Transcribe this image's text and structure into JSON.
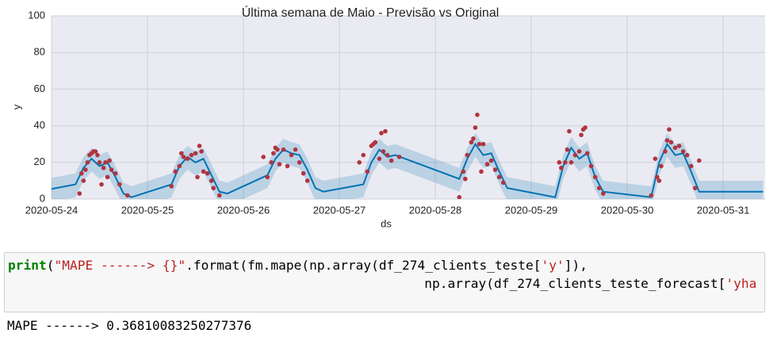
{
  "chart_data": {
    "type": "forecast",
    "title": "Última semana de Maio - Previsão vs Original",
    "xlabel": "ds",
    "ylabel": "y",
    "xlim": [
      "2020-05-24 00:00",
      "2020-05-31 10:30"
    ],
    "xticks": [
      "2020-05-24",
      "2020-05-25",
      "2020-05-26",
      "2020-05-27",
      "2020-05-28",
      "2020-05-29",
      "2020-05-30",
      "2020-05-31"
    ],
    "ylim": [
      0,
      100
    ],
    "yticks": [
      0,
      20,
      40,
      60,
      80,
      100
    ],
    "grid": true,
    "forecast": {
      "color": "#0072b2",
      "x": [
        "2020-05-24 00:00",
        "2020-05-24 06:00",
        "2020-05-24 08:00",
        "2020-05-24 10:00",
        "2020-05-24 12:00",
        "2020-05-24 14:00",
        "2020-05-24 16:00",
        "2020-05-24 18:00",
        "2020-05-24 20:00",
        "2020-05-25 06:00",
        "2020-05-25 08:00",
        "2020-05-25 10:00",
        "2020-05-25 12:00",
        "2020-05-25 14:00",
        "2020-05-25 16:00",
        "2020-05-25 18:00",
        "2020-05-25 20:00",
        "2020-05-26 06:00",
        "2020-05-26 08:00",
        "2020-05-26 10:00",
        "2020-05-26 12:00",
        "2020-05-26 14:00",
        "2020-05-26 16:00",
        "2020-05-26 18:00",
        "2020-05-26 20:00",
        "2020-05-27 06:00",
        "2020-05-27 08:00",
        "2020-05-27 10:00",
        "2020-05-27 12:00",
        "2020-05-27 14:00",
        "2020-05-28 06:00",
        "2020-05-28 08:00",
        "2020-05-28 10:00",
        "2020-05-28 12:00",
        "2020-05-28 14:00",
        "2020-05-28 16:00",
        "2020-05-28 18:00",
        "2020-05-29 06:00",
        "2020-05-29 08:00",
        "2020-05-29 10:00",
        "2020-05-29 12:00",
        "2020-05-29 14:00",
        "2020-05-29 16:00",
        "2020-05-29 18:00",
        "2020-05-30 06:00",
        "2020-05-30 08:00",
        "2020-05-30 10:00",
        "2020-05-30 12:00",
        "2020-05-30 14:00",
        "2020-05-30 16:00",
        "2020-05-30 18:00",
        "2020-05-31 00:00",
        "2020-05-31 10:00"
      ],
      "values": [
        5.5,
        8,
        17,
        22,
        18,
        20,
        12,
        3,
        1,
        8,
        18,
        23,
        20,
        22,
        13,
        4,
        3,
        13,
        22,
        27,
        25,
        24,
        16,
        6,
        4,
        8,
        20,
        27,
        23,
        24,
        11,
        22,
        30,
        24,
        25,
        15,
        6,
        1,
        18,
        28,
        22,
        25,
        12,
        4,
        1,
        20,
        30,
        24,
        25,
        15,
        4,
        4,
        4
      ],
      "lower": [
        -1.5,
        1,
        10,
        15,
        11,
        13,
        5,
        -4,
        -6,
        1,
        11,
        16,
        13,
        15,
        6,
        -3,
        -4,
        6,
        15,
        20,
        18,
        17,
        9,
        -1,
        -3,
        1,
        13,
        20,
        16,
        17,
        4,
        15,
        23,
        17,
        18,
        8,
        -1,
        -6,
        11,
        21,
        15,
        18,
        5,
        -3,
        -6,
        13,
        23,
        17,
        18,
        8,
        -3,
        -3,
        -3
      ],
      "upper": [
        11.5,
        14,
        23,
        28,
        24,
        26,
        18,
        9,
        7,
        14,
        24,
        29,
        26,
        28,
        19,
        10,
        9,
        19,
        28,
        33,
        31,
        30,
        22,
        12,
        10,
        14,
        26,
        33,
        29,
        30,
        17,
        28,
        36,
        30,
        31,
        21,
        12,
        7,
        24,
        34,
        28,
        31,
        18,
        10,
        7,
        26,
        36,
        30,
        31,
        21,
        10,
        10,
        10
      ]
    },
    "points": {
      "color": "#b0343f",
      "x": [
        "2020-05-24 07:00",
        "2020-05-24 07:30",
        "2020-05-24 08:00",
        "2020-05-24 08:30",
        "2020-05-24 09:00",
        "2020-05-24 09:30",
        "2020-05-24 10:00",
        "2020-05-24 10:30",
        "2020-05-24 11:00",
        "2020-05-24 11:30",
        "2020-05-24 12:00",
        "2020-05-24 12:30",
        "2020-05-24 13:00",
        "2020-05-24 13:30",
        "2020-05-24 14:00",
        "2020-05-24 14:30",
        "2020-05-24 15:00",
        "2020-05-24 16:00",
        "2020-05-24 17:00",
        "2020-05-24 19:00",
        "2020-05-25 06:00",
        "2020-05-25 07:00",
        "2020-05-25 08:00",
        "2020-05-25 08:30",
        "2020-05-25 09:00",
        "2020-05-25 10:00",
        "2020-05-25 11:00",
        "2020-05-25 12:00",
        "2020-05-25 12:30",
        "2020-05-25 13:00",
        "2020-05-25 13:30",
        "2020-05-25 14:00",
        "2020-05-25 15:00",
        "2020-05-25 16:00",
        "2020-05-25 16:30",
        "2020-05-25 18:00",
        "2020-05-26 05:00",
        "2020-05-26 06:00",
        "2020-05-26 07:00",
        "2020-05-26 07:30",
        "2020-05-26 08:00",
        "2020-05-26 08:30",
        "2020-05-26 09:00",
        "2020-05-26 10:00",
        "2020-05-26 11:00",
        "2020-05-26 12:00",
        "2020-05-26 13:00",
        "2020-05-26 14:00",
        "2020-05-26 15:00",
        "2020-05-26 16:00",
        "2020-05-27 05:00",
        "2020-05-27 06:00",
        "2020-05-27 07:00",
        "2020-05-27 08:00",
        "2020-05-27 08:30",
        "2020-05-27 09:00",
        "2020-05-27 10:00",
        "2020-05-27 10:30",
        "2020-05-27 11:00",
        "2020-05-27 11:30",
        "2020-05-27 12:00",
        "2020-05-27 13:00",
        "2020-05-27 15:00",
        "2020-05-28 06:00",
        "2020-05-28 07:00",
        "2020-05-28 07:30",
        "2020-05-28 08:00",
        "2020-05-28 09:00",
        "2020-05-28 09:30",
        "2020-05-28 10:00",
        "2020-05-28 10:30",
        "2020-05-28 11:00",
        "2020-05-28 11:30",
        "2020-05-28 12:00",
        "2020-05-28 13:00",
        "2020-05-28 14:00",
        "2020-05-28 15:00",
        "2020-05-28 16:00",
        "2020-05-28 17:00",
        "2020-05-29 07:00",
        "2020-05-29 07:30",
        "2020-05-29 08:30",
        "2020-05-29 09:00",
        "2020-05-29 09:30",
        "2020-05-29 10:00",
        "2020-05-29 11:00",
        "2020-05-29 12:00",
        "2020-05-29 12:30",
        "2020-05-29 13:00",
        "2020-05-29 13:30",
        "2020-05-29 14:00",
        "2020-05-29 15:00",
        "2020-05-29 16:00",
        "2020-05-29 17:00",
        "2020-05-29 18:00",
        "2020-05-30 06:00",
        "2020-05-30 07:00",
        "2020-05-30 07:30",
        "2020-05-30 08:00",
        "2020-05-30 08:30",
        "2020-05-30 09:30",
        "2020-05-30 10:00",
        "2020-05-30 10:30",
        "2020-05-30 11:00",
        "2020-05-30 12:00",
        "2020-05-30 13:00",
        "2020-05-30 14:00",
        "2020-05-30 15:00",
        "2020-05-30 16:00",
        "2020-05-30 17:00",
        "2020-05-30 18:00"
      ],
      "values": [
        3,
        14,
        10,
        16,
        20,
        24,
        25,
        26,
        26,
        24,
        20,
        8,
        17,
        20,
        12,
        21,
        16,
        14,
        8,
        2,
        7,
        15,
        18,
        25,
        23,
        22,
        24,
        25,
        12,
        29,
        26,
        15,
        14,
        10,
        6,
        2,
        23,
        12,
        20,
        25,
        28,
        27,
        19,
        27,
        18,
        24,
        27,
        20,
        14,
        10,
        20,
        24,
        15,
        29,
        30,
        31,
        22,
        36,
        26,
        37,
        24,
        21,
        23,
        1,
        15,
        11,
        24,
        31,
        33,
        39,
        46,
        30,
        15,
        30,
        19,
        21,
        16,
        12,
        9,
        20,
        17,
        20,
        27,
        37,
        20,
        24,
        26,
        35,
        38,
        39,
        25,
        18,
        12,
        6,
        3,
        2,
        22,
        12,
        10,
        18,
        26,
        32,
        38,
        31,
        28,
        29,
        26,
        24,
        18,
        6,
        21
      ]
    }
  },
  "code": {
    "lines": [
      [
        {
          "text": "print",
          "style": "builtin"
        },
        {
          "text": "(",
          "style": "plain"
        },
        {
          "text": "\"MAPE ------> {}\"",
          "style": "string"
        },
        {
          "text": ".format(fm.mape(np.array(df_274_clients_teste[",
          "style": "plain"
        },
        {
          "text": "'y'",
          "style": "string"
        },
        {
          "text": "]),",
          "style": "plain"
        }
      ],
      [
        {
          "text": "np.array(df_274_clients_teste_forecast[",
          "style": "plain"
        },
        {
          "text": "'yha",
          "style": "string"
        }
      ]
    ]
  },
  "output": "MAPE ------> 0.36810083250277376"
}
